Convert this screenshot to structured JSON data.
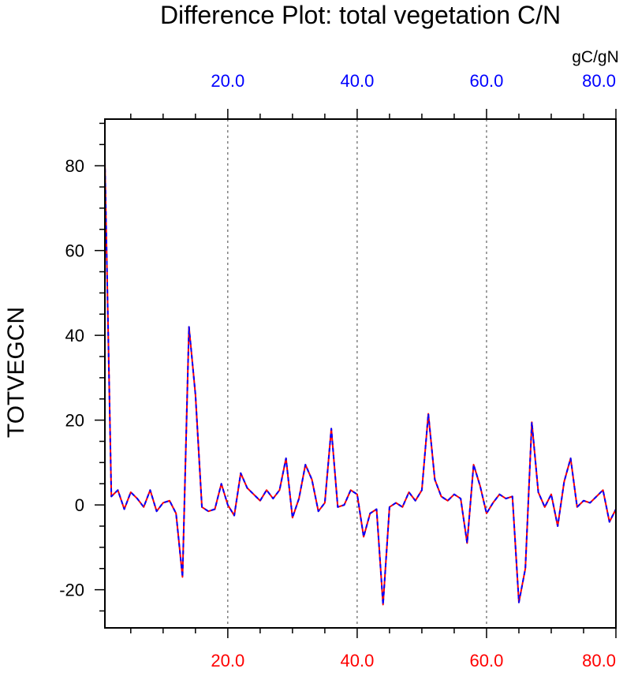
{
  "chart_data": {
    "type": "line",
    "title": "Difference Plot: total vegetation C/N",
    "ylabel": "TOTVEGCN",
    "top_axis_unit": "gC/gN",
    "xlim": [
      1,
      80
    ],
    "ylim": [
      -29,
      91
    ],
    "x_major_ticks": [
      20,
      40,
      60,
      80
    ],
    "x_tick_labels_top": [
      "20.0",
      "40.0",
      "60.0",
      "80.0"
    ],
    "x_tick_labels_bottom": [
      "20.0",
      "40.0",
      "60.0",
      "80.0"
    ],
    "y_major_ticks": [
      -20,
      0,
      20,
      40,
      60,
      80
    ],
    "y_tick_labels": [
      "-20",
      "0",
      "20",
      "40",
      "60",
      "80"
    ],
    "grid": "vertical dashed at major x ticks",
    "colors": {
      "top_ticks": "#0000ff",
      "bottom_ticks": "#ff0000",
      "series_a": "#ff0000",
      "series_b": "#0000ff",
      "grid": "#444444"
    },
    "series": [
      {
        "values": [
          81,
          2,
          3.5,
          -1,
          3,
          1.5,
          -0.5,
          3.5,
          -1.5,
          0.5,
          1,
          -2,
          -17,
          42,
          26,
          -0.5,
          -1.5,
          -1,
          5,
          0,
          -2.5,
          7.5,
          4,
          2.5,
          1,
          3.5,
          1.5,
          3.5,
          11,
          -3,
          1.5,
          9.5,
          6,
          -1.5,
          0.5,
          18,
          -0.5,
          0,
          3.5,
          2.5,
          -7.5,
          -2,
          -1,
          -23.5,
          -0.5,
          0.5,
          -0.5,
          3,
          1,
          3.5,
          21.5,
          6,
          2,
          1,
          2.5,
          1.5,
          -9,
          9.5,
          4.5,
          -2,
          0.5,
          2.5,
          1.5,
          2,
          -23,
          -15,
          19.5,
          3,
          -0.5,
          2.5,
          -5,
          5.5,
          11,
          -0.5,
          1,
          0.5,
          2,
          3.5,
          -4,
          -1
        ]
      },
      {
        "values": [
          81,
          2,
          3.5,
          -1,
          3,
          1.5,
          -0.5,
          3.5,
          -1.5,
          0.5,
          1,
          -2,
          -17,
          42,
          26,
          -0.5,
          -1.5,
          -1,
          5,
          0,
          -2.5,
          7.5,
          4,
          2.5,
          1,
          3.5,
          1.5,
          3.5,
          11,
          -3,
          1.5,
          9.5,
          6,
          -1.5,
          0.5,
          18,
          -0.5,
          0,
          3.5,
          2.5,
          -7.5,
          -2,
          -1,
          -23.5,
          -0.5,
          0.5,
          -0.5,
          3,
          1,
          3.5,
          21.5,
          6,
          2,
          1,
          2.5,
          1.5,
          -9,
          9.5,
          4.5,
          -2,
          0.5,
          2.5,
          1.5,
          2,
          -23,
          -15,
          19.5,
          3,
          -0.5,
          2.5,
          -5,
          5.5,
          11,
          -0.5,
          1,
          0.5,
          2,
          3.5,
          -4,
          -1
        ]
      }
    ]
  }
}
